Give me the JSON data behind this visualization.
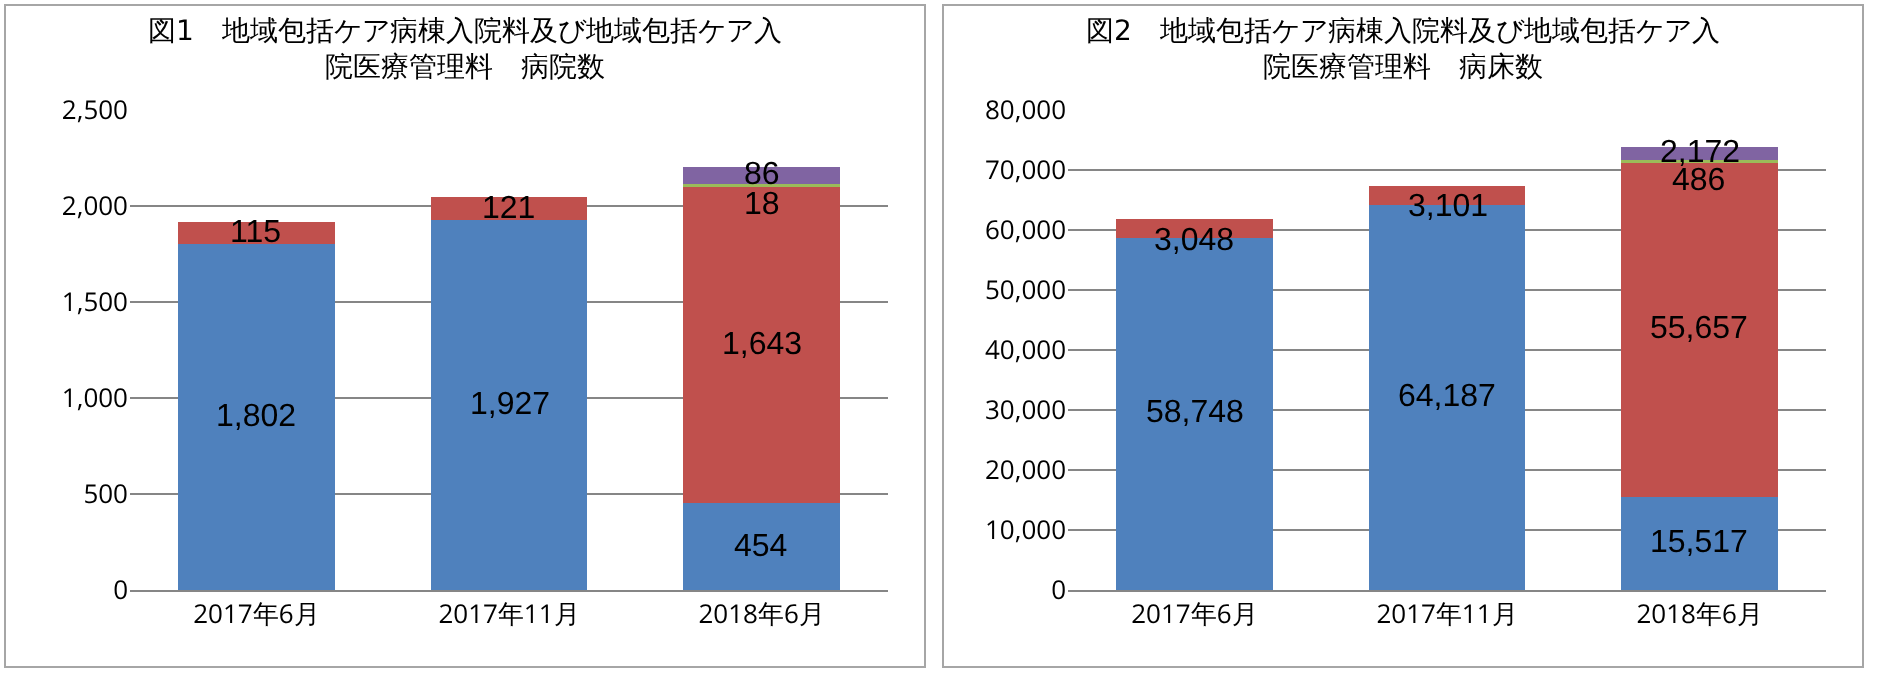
{
  "chart_data": [
    {
      "type": "bar",
      "title": "図1　地域包括ケア病棟入院料及び地域包括ケア入院医療管理料　病院数",
      "categories": [
        "2017年6月",
        "2017年11月",
        "2018年6月"
      ],
      "stacked": true,
      "grid": "y",
      "ylim": [
        0,
        2500
      ],
      "yticks": [
        0,
        {
          "value": 500,
          "label": "500"
        },
        {
          "value": 1000,
          "label": "1,000"
        },
        {
          "value": 1500,
          "label": "1,500"
        },
        {
          "value": 2000,
          "label": "2,000"
        },
        {
          "value": 2500,
          "label": "2,500"
        }
      ],
      "series": [
        {
          "color": "#4f81bd",
          "values": [
            1802,
            1927,
            454
          ],
          "value_labels": [
            "1,802",
            "1,927",
            "454"
          ]
        },
        {
          "color": "#c0504d",
          "values": [
            115,
            121,
            1643
          ],
          "value_labels": [
            "115",
            "121",
            "1,643"
          ]
        },
        {
          "color": "#9bbb59",
          "values": [
            null,
            null,
            18
          ],
          "value_labels": [
            null,
            null,
            "18"
          ]
        },
        {
          "color": "#8064a2",
          "values": [
            null,
            null,
            86
          ],
          "value_labels": [
            null,
            null,
            "86"
          ]
        }
      ]
    },
    {
      "type": "bar",
      "title": "図2　地域包括ケア病棟入院料及び地域包括ケア入院医療管理料　病床数",
      "categories": [
        "2017年6月",
        "2017年11月",
        "2018年6月"
      ],
      "stacked": true,
      "grid": "y",
      "ylim": [
        0,
        80000
      ],
      "yticks": [
        0,
        {
          "value": 10000,
          "label": "10,000"
        },
        {
          "value": 20000,
          "label": "20,000"
        },
        {
          "value": 30000,
          "label": "30,000"
        },
        {
          "value": 40000,
          "label": "40,000"
        },
        {
          "value": 50000,
          "label": "50,000"
        },
        {
          "value": 60000,
          "label": "60,000"
        },
        {
          "value": 70000,
          "label": "70,000"
        },
        {
          "value": 80000,
          "label": "80,000"
        }
      ],
      "series": [
        {
          "color": "#4f81bd",
          "values": [
            58748,
            64187,
            15517
          ],
          "value_labels": [
            "58,748",
            "64,187",
            "15,517"
          ]
        },
        {
          "color": "#c0504d",
          "values": [
            3048,
            3101,
            55657
          ],
          "value_labels": [
            "3,048",
            "3,101",
            "55,657"
          ]
        },
        {
          "color": "#9bbb59",
          "values": [
            null,
            null,
            486
          ],
          "value_labels": [
            null,
            null,
            "486"
          ]
        },
        {
          "color": "#8064a2",
          "values": [
            null,
            null,
            2172
          ],
          "value_labels": [
            null,
            null,
            "2,172"
          ]
        }
      ]
    }
  ]
}
